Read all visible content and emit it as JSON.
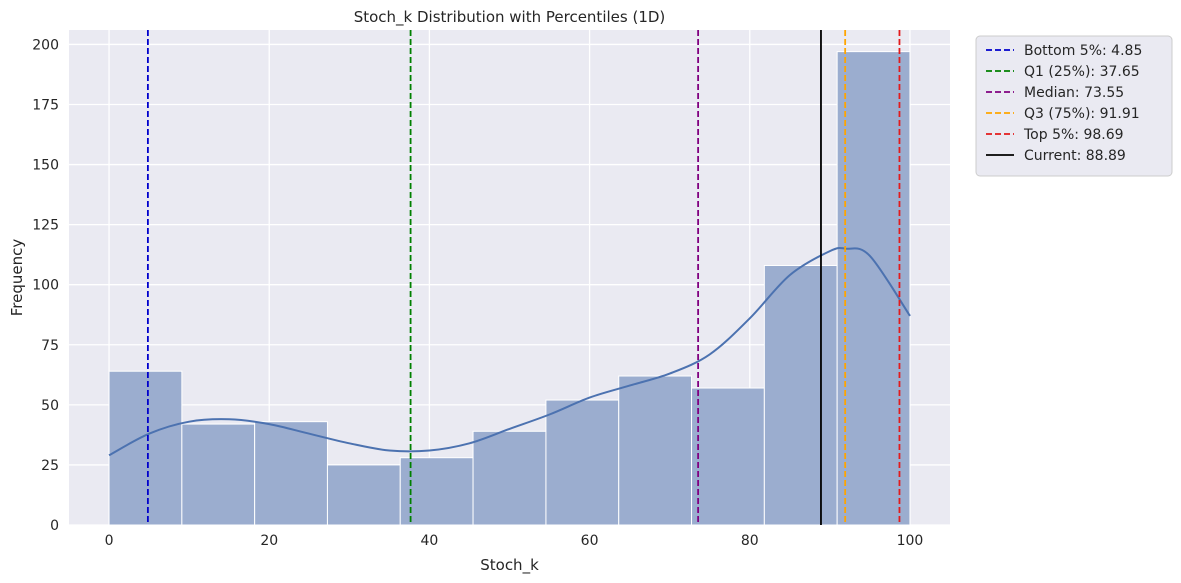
{
  "chart_data": {
    "type": "bar",
    "title": "Stoch_k Distribution with Percentiles (1D)",
    "xlabel": "Stoch_k",
    "ylabel": "Frequency",
    "xlim": [
      -5,
      105
    ],
    "ylim": [
      0,
      206
    ],
    "xticks": [
      0,
      20,
      40,
      60,
      80,
      100
    ],
    "yticks": [
      0,
      25,
      50,
      75,
      100,
      125,
      150,
      175,
      200
    ],
    "grid": true,
    "bar_color": "#9badcf",
    "bins": [
      {
        "start": 0.0,
        "end": 9.09,
        "count": 64
      },
      {
        "start": 9.09,
        "end": 18.18,
        "count": 42
      },
      {
        "start": 18.18,
        "end": 27.27,
        "count": 43
      },
      {
        "start": 27.27,
        "end": 36.36,
        "count": 25
      },
      {
        "start": 36.36,
        "end": 45.45,
        "count": 28
      },
      {
        "start": 45.45,
        "end": 54.55,
        "count": 39
      },
      {
        "start": 54.55,
        "end": 63.64,
        "count": 52
      },
      {
        "start": 63.64,
        "end": 72.73,
        "count": 62
      },
      {
        "start": 72.73,
        "end": 81.82,
        "count": 57
      },
      {
        "start": 81.82,
        "end": 90.91,
        "count": 108
      },
      {
        "start": 90.91,
        "end": 100.0,
        "count": 197
      }
    ],
    "kde": {
      "color": "#4c72b0",
      "x": [
        0,
        5,
        10,
        15,
        20,
        25,
        30,
        35,
        40,
        45,
        50,
        55,
        60,
        65,
        70,
        75,
        80,
        85,
        90,
        92,
        95,
        100
      ],
      "y": [
        29,
        38,
        43,
        44,
        42,
        38,
        34,
        31,
        31,
        34,
        40,
        46,
        53,
        58,
        63,
        71,
        86,
        104,
        114,
        115,
        112,
        87
      ]
    },
    "reference_lines": [
      {
        "label": "Bottom 5%: 4.85",
        "x": 4.85,
        "color": "#0000cc",
        "style": "dashed"
      },
      {
        "label": "Q1 (25%): 37.65",
        "x": 37.65,
        "color": "#008000",
        "style": "dashed"
      },
      {
        "label": "Median: 73.55",
        "x": 73.55,
        "color": "#800080",
        "style": "dashed"
      },
      {
        "label": "Q3 (75%): 91.91",
        "x": 91.91,
        "color": "#ffa500",
        "style": "dashed"
      },
      {
        "label": "Top 5%: 98.69",
        "x": 98.69,
        "color": "#e31a1c",
        "style": "dashed"
      },
      {
        "label": "Current: 88.89",
        "x": 88.89,
        "color": "#000000",
        "style": "solid"
      }
    ],
    "legend_position": "outside-top-right"
  }
}
